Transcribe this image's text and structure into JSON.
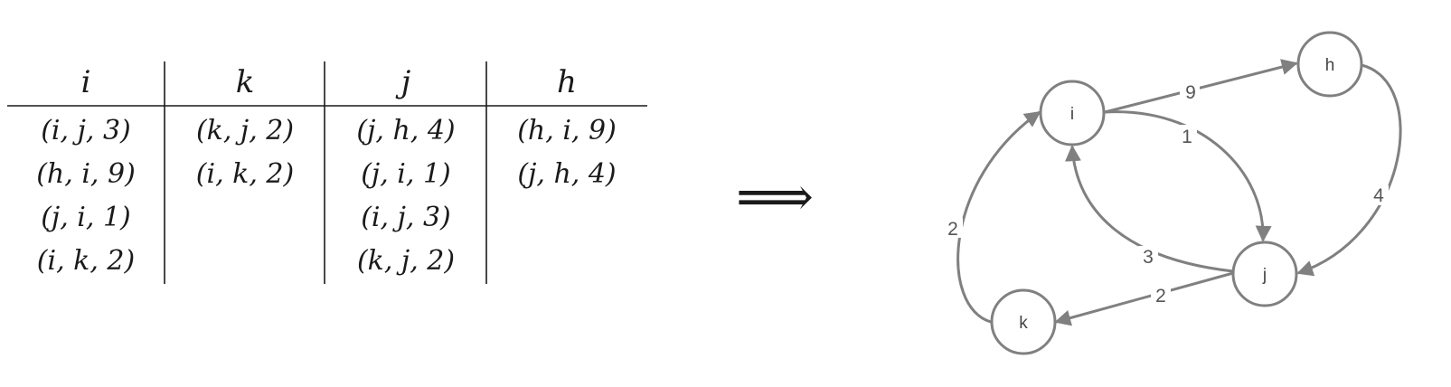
{
  "table": {
    "headers": [
      "i",
      "k",
      "j",
      "h"
    ],
    "columns": [
      [
        "(i, j, 3)",
        "(h, i, 9)",
        "(j, i, 1)",
        "(i, k, 2)"
      ],
      [
        "(k, j, 2)",
        "(i, k, 2)"
      ],
      [
        "(j, h, 4)",
        "(j, i, 1)",
        "(i, j, 3)",
        "(k, j, 2)"
      ],
      [
        "(h, i, 9)",
        "(j, h, 4)"
      ]
    ]
  },
  "implies_symbol": "⟹",
  "graph": {
    "edge_color": "#808080",
    "nodes": [
      {
        "id": "i",
        "label": "i"
      },
      {
        "id": "h",
        "label": "h"
      },
      {
        "id": "j",
        "label": "j"
      },
      {
        "id": "k",
        "label": "k"
      }
    ],
    "edges": [
      {
        "from": "i",
        "to": "h",
        "weight": "9"
      },
      {
        "from": "i",
        "to": "j",
        "weight": "1"
      },
      {
        "from": "h",
        "to": "j",
        "weight": "4"
      },
      {
        "from": "j",
        "to": "i",
        "weight": "3"
      },
      {
        "from": "j",
        "to": "k",
        "weight": "2"
      },
      {
        "from": "k",
        "to": "i",
        "weight": "2"
      }
    ]
  }
}
